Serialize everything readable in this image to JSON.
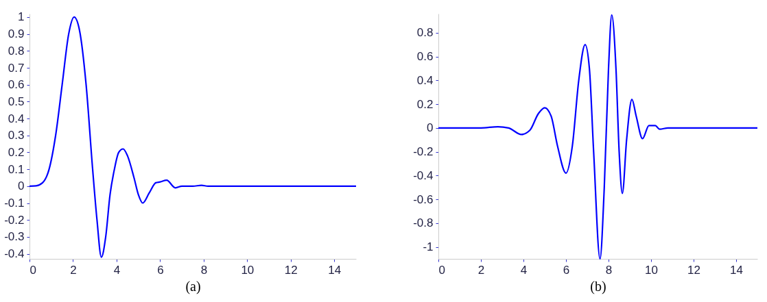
{
  "chart_data": [
    {
      "type": "line",
      "xlabel": "(a)",
      "xlim": [
        0,
        15
      ],
      "xticks": [
        0,
        2,
        4,
        6,
        8,
        10,
        12,
        14
      ],
      "ylim": [
        -0.43,
        1.02
      ],
      "yticks": [
        -0.4,
        -0.3,
        -0.2,
        -0.1,
        0,
        0.1,
        0.2,
        0.3,
        0.4,
        0.5,
        0.6,
        0.7,
        0.8,
        0.9,
        1
      ],
      "grid": false,
      "x": [
        0,
        0.3,
        0.6,
        0.9,
        1.2,
        1.5,
        1.8,
        2.05,
        2.3,
        2.6,
        2.9,
        3.1,
        3.3,
        3.5,
        3.7,
        3.9,
        4.1,
        4.3,
        4.5,
        4.8,
        5.0,
        5.2,
        5.5,
        5.8,
        6.0,
        6.3,
        6.7,
        7.0,
        7.5,
        7.9,
        8.2,
        15
      ],
      "series": [
        {
          "color": "#0000ff",
          "values": [
            0,
            0.002,
            0.02,
            0.1,
            0.3,
            0.6,
            0.9,
            1.0,
            0.92,
            0.6,
            0.1,
            -0.2,
            -0.42,
            -0.3,
            -0.05,
            0.1,
            0.2,
            0.22,
            0.18,
            0.05,
            -0.05,
            -0.1,
            -0.04,
            0.02,
            0.025,
            0.035,
            -0.01,
            0,
            0,
            0.005,
            0,
            0
          ]
        }
      ]
    },
    {
      "type": "line",
      "xlabel": "(b)",
      "xlim": [
        0,
        15
      ],
      "xticks": [
        0,
        2,
        4,
        6,
        8,
        10,
        12,
        14
      ],
      "ylim": [
        -1.1,
        0.96
      ],
      "yticks": [
        -1,
        -0.8,
        -0.6,
        -0.4,
        -0.2,
        0,
        0.2,
        0.4,
        0.6,
        0.8
      ],
      "grid": false,
      "x": [
        0,
        2,
        2.8,
        3.3,
        3.9,
        4.3,
        4.7,
        5.0,
        5.3,
        5.6,
        6.0,
        6.3,
        6.6,
        6.9,
        7.1,
        7.3,
        7.6,
        7.8,
        8.0,
        8.15,
        8.35,
        8.5,
        8.65,
        8.85,
        9.1,
        9.3,
        9.6,
        9.9,
        10.2,
        10.4,
        10.8,
        15
      ],
      "series": [
        {
          "color": "#0000ff",
          "values": [
            0,
            0,
            0.01,
            0,
            -0.055,
            -0.02,
            0.12,
            0.17,
            0.1,
            -0.15,
            -0.38,
            -0.15,
            0.4,
            0.7,
            0.5,
            -0.2,
            -1.1,
            -0.5,
            0.5,
            0.95,
            0.5,
            -0.2,
            -0.55,
            -0.1,
            0.24,
            0.1,
            -0.09,
            0.02,
            0.02,
            -0.01,
            0,
            0
          ]
        }
      ]
    }
  ]
}
